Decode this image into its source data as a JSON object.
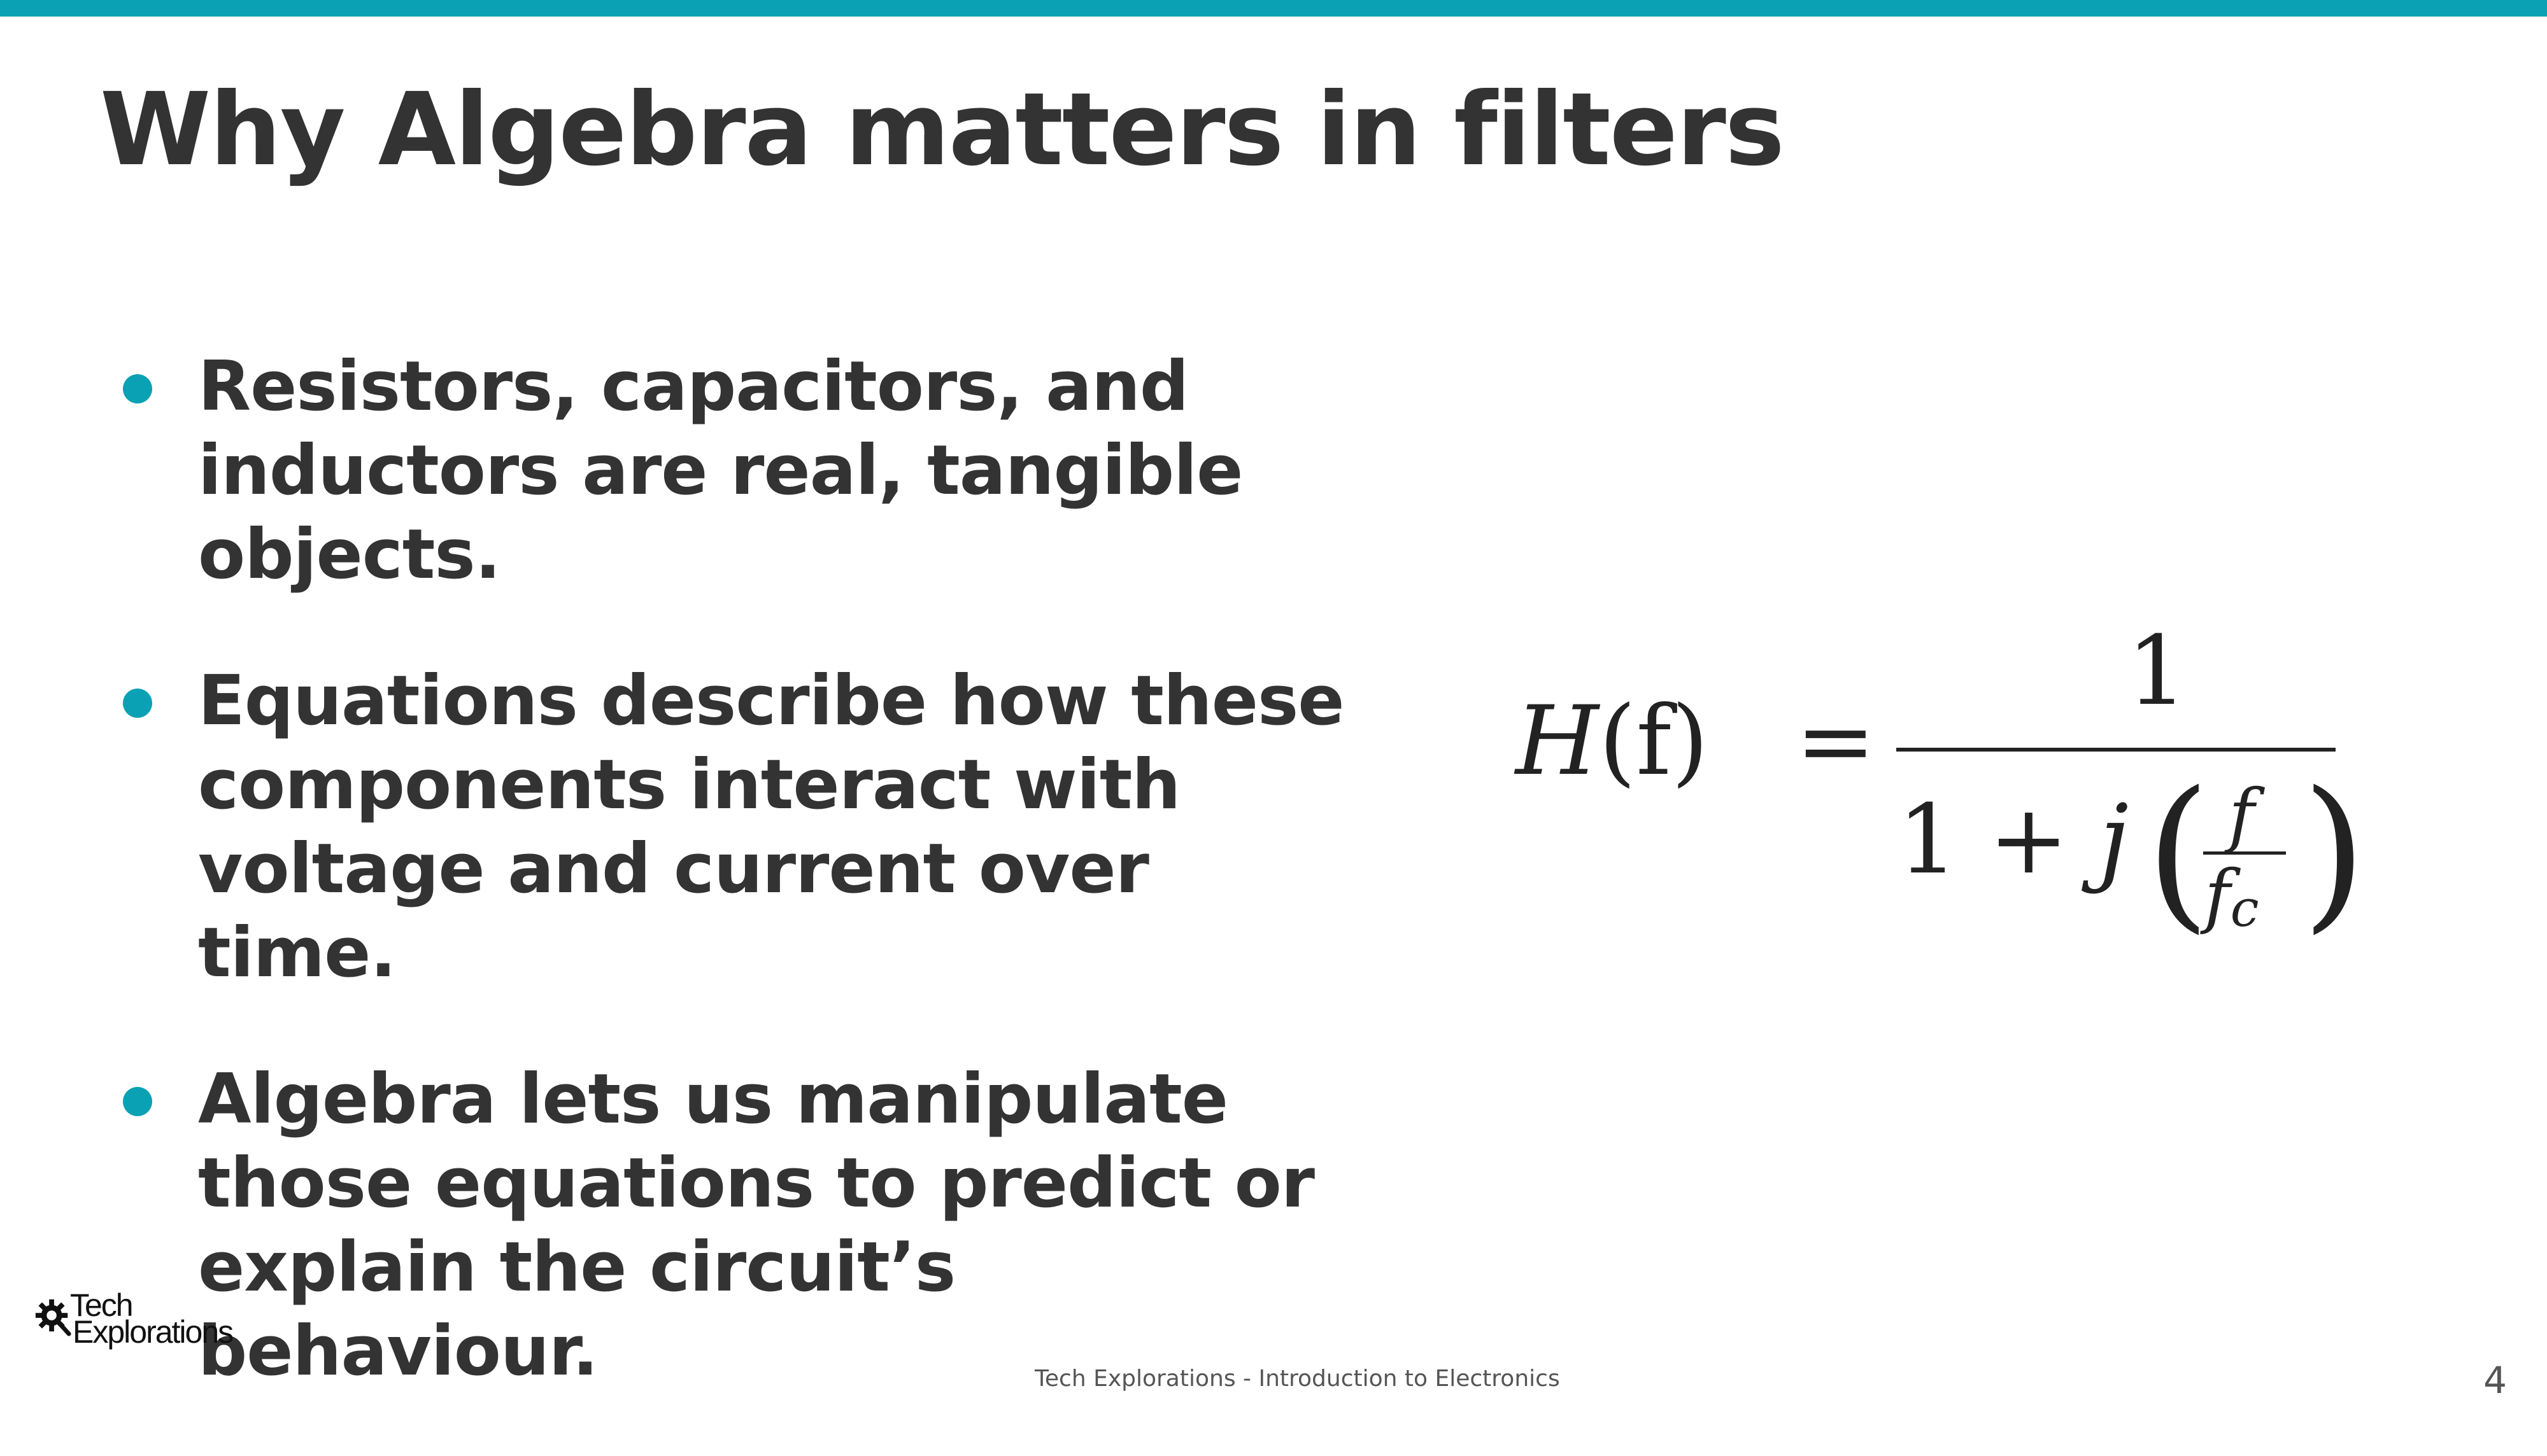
{
  "slide": {
    "title": "Why Algebra matters in filters",
    "bullets": [
      {
        "text": "Resistors, capacitors, and inductors are real, tangible objects."
      },
      {
        "text": "Equations describe how these components interact with voltage and current over time."
      },
      {
        "text": "Algebra lets us manipulate those equations to predict or explain the circuit’s behaviour."
      }
    ],
    "formula": {
      "lhs_var": "H",
      "lhs_arg": "(f)",
      "equals": "=",
      "numerator": "1",
      "denominator_prefix": "1 + ",
      "denominator_j": "j",
      "paren_left": "(",
      "paren_right": ")",
      "inner_numerator": "f",
      "inner_denominator": "f",
      "inner_denominator_sub": "c"
    },
    "logo": {
      "line1": "Tech",
      "line2": "Explorations"
    },
    "footer": "Tech Explorations - Introduction to Electronics",
    "page_number": "4"
  },
  "colors": {
    "accent": "#0aa1b4",
    "text": "#333333"
  }
}
